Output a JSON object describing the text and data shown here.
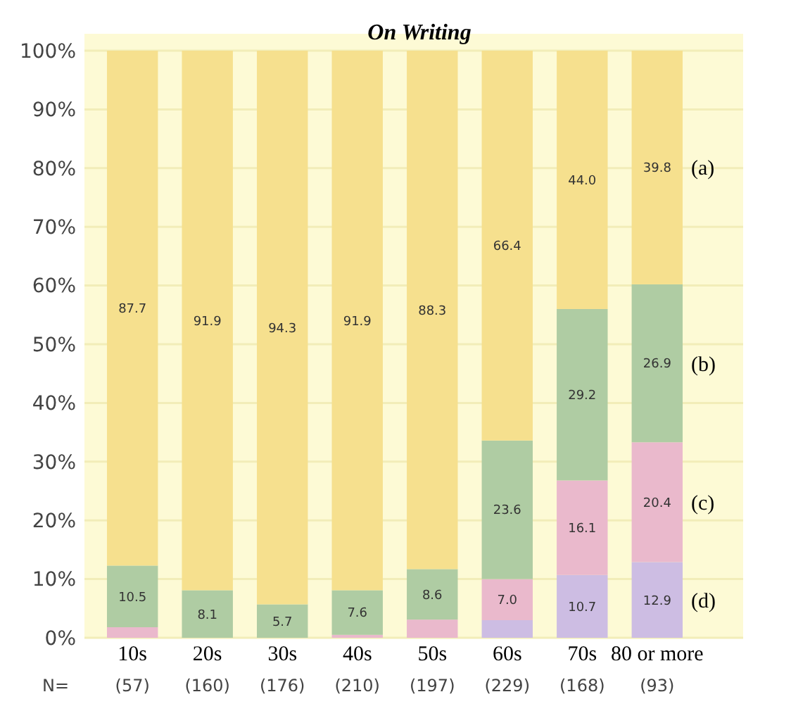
{
  "chart_data": {
    "type": "bar",
    "title": "On Writing",
    "stacked": true,
    "categories": [
      "10s",
      "20s",
      "30s",
      "40s",
      "50s",
      "60s",
      "70s",
      "80 or more"
    ],
    "series": [
      {
        "name": "(d)",
        "color": "#cdbde3",
        "values": [
          0,
          0,
          0,
          0,
          0,
          3.0,
          10.7,
          12.9
        ],
        "value_labels": [
          null,
          null,
          null,
          null,
          null,
          null,
          "10.7",
          "12.9"
        ]
      },
      {
        "name": "(c)",
        "color": "#eab9cc",
        "values": [
          1.8,
          0,
          0,
          0.5,
          3.1,
          7.0,
          16.1,
          20.4
        ],
        "value_labels": [
          null,
          null,
          null,
          null,
          null,
          "7.0",
          "16.1",
          "20.4"
        ]
      },
      {
        "name": "(b)",
        "color": "#afcca3",
        "values": [
          10.5,
          8.1,
          5.7,
          7.6,
          8.6,
          23.6,
          29.2,
          26.9
        ],
        "value_labels": [
          "10.5",
          "8.1",
          "5.7",
          "7.6",
          "8.6",
          "23.6",
          "29.2",
          "26.9"
        ]
      },
      {
        "name": "(a)",
        "color": "#f6e08e",
        "values": [
          87.7,
          91.9,
          94.3,
          91.9,
          88.3,
          66.4,
          44.0,
          39.8
        ],
        "value_labels": [
          "87.7",
          "91.9",
          "94.3",
          "91.9",
          "88.3",
          "66.4",
          "44.0",
          "39.8"
        ]
      }
    ],
    "ylim": [
      0,
      100
    ],
    "yticks": [
      {
        "value": 0,
        "label": "0%"
      },
      {
        "value": 10,
        "label": "10%"
      },
      {
        "value": 20,
        "label": "20%"
      },
      {
        "value": 30,
        "label": "30%"
      },
      {
        "value": 40,
        "label": "40%"
      },
      {
        "value": 50,
        "label": "50%"
      },
      {
        "value": 60,
        "label": "60%"
      },
      {
        "value": 70,
        "label": "70%"
      },
      {
        "value": 80,
        "label": "80%"
      },
      {
        "value": 90,
        "label": "90%"
      },
      {
        "value": 100,
        "label": "100%"
      }
    ],
    "grid": "y",
    "annotations": [
      "N=",
      "(57)",
      "(160)",
      "(176)",
      "(210)",
      "(197)",
      "(229)",
      "(168)",
      "(93)"
    ]
  }
}
